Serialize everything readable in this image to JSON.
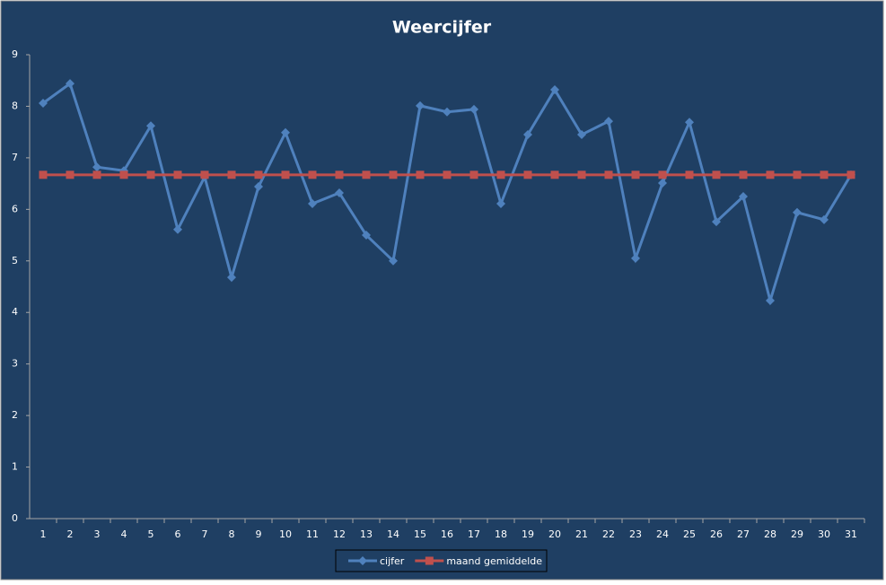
{
  "chart_data": {
    "type": "line",
    "title": "Weercijfer",
    "categories": [
      1,
      2,
      3,
      4,
      5,
      6,
      7,
      8,
      9,
      10,
      11,
      12,
      13,
      14,
      15,
      16,
      17,
      18,
      19,
      20,
      21,
      22,
      23,
      24,
      25,
      26,
      27,
      28,
      29,
      30,
      31
    ],
    "series": [
      {
        "name": "cijfer",
        "color": "#4f81bd",
        "marker": "diamond",
        "values": [
          8.06,
          8.44,
          6.82,
          6.75,
          7.62,
          5.61,
          6.63,
          4.68,
          6.44,
          7.49,
          6.11,
          6.32,
          5.5,
          5.0,
          8.01,
          7.89,
          7.94,
          6.11,
          7.45,
          8.32,
          7.45,
          7.71,
          5.05,
          6.51,
          7.69,
          5.76,
          6.25,
          4.23,
          5.94,
          5.8,
          6.67
        ]
      },
      {
        "name": "maand gemiddelde",
        "color": "#c0504d",
        "marker": "square",
        "values": [
          6.67,
          6.67,
          6.67,
          6.67,
          6.67,
          6.67,
          6.67,
          6.67,
          6.67,
          6.67,
          6.67,
          6.67,
          6.67,
          6.67,
          6.67,
          6.67,
          6.67,
          6.67,
          6.67,
          6.67,
          6.67,
          6.67,
          6.67,
          6.67,
          6.67,
          6.67,
          6.67,
          6.67,
          6.67,
          6.67,
          6.67
        ]
      }
    ],
    "ylim": [
      0,
      9
    ],
    "yticks": [
      0,
      1,
      2,
      3,
      4,
      5,
      6,
      7,
      8,
      9
    ],
    "grid": false,
    "legend": "bottom"
  }
}
